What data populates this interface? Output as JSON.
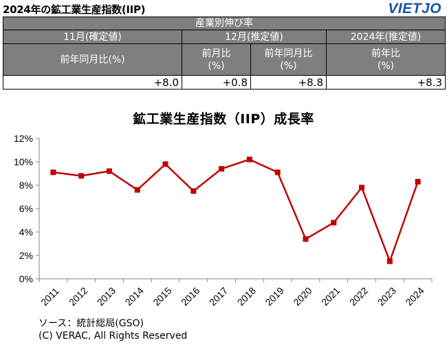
{
  "header": {
    "title": "2024年の鉱工業生産指数(IIP)",
    "logo_text": "VIETJO"
  },
  "table": {
    "section_header": "産業別伸び率",
    "groups": [
      "11月(確定値)",
      "12月(推定値)",
      "2024年(推定値)"
    ],
    "subheaders": [
      "前年同月比(%)",
      "前月比\n(%)",
      "前年同月比\n(%)",
      "前年比\n(%)"
    ],
    "values": [
      "+8.0",
      "+0.8",
      "+8.8",
      "+8.3"
    ]
  },
  "chart_data": {
    "type": "line",
    "title": "鉱工業生産指数（IIP）成長率",
    "xlabel": "",
    "ylabel": "",
    "x": [
      "2011",
      "2012",
      "2013",
      "2014",
      "2015",
      "2016",
      "2017",
      "2018",
      "2019",
      "2020",
      "2021",
      "2022",
      "2023",
      "2024"
    ],
    "series": [
      {
        "values": [
          9.1,
          8.8,
          9.2,
          7.6,
          9.8,
          7.5,
          9.4,
          10.2,
          9.1,
          3.4,
          4.8,
          7.8,
          1.5,
          8.3
        ]
      }
    ],
    "ylim": [
      0,
      12
    ],
    "yticks": [
      0,
      2,
      4,
      6,
      8,
      10,
      12
    ],
    "ytick_labels": [
      "0%",
      "2%",
      "4%",
      "6%",
      "8%",
      "10%",
      "12%"
    ],
    "grid": false,
    "legend": "none",
    "line_color": "#c00000"
  },
  "footer": {
    "source": "ソース：統計総局(GSO)",
    "copyright": "(C) VERAC, All Rights Reserved"
  }
}
